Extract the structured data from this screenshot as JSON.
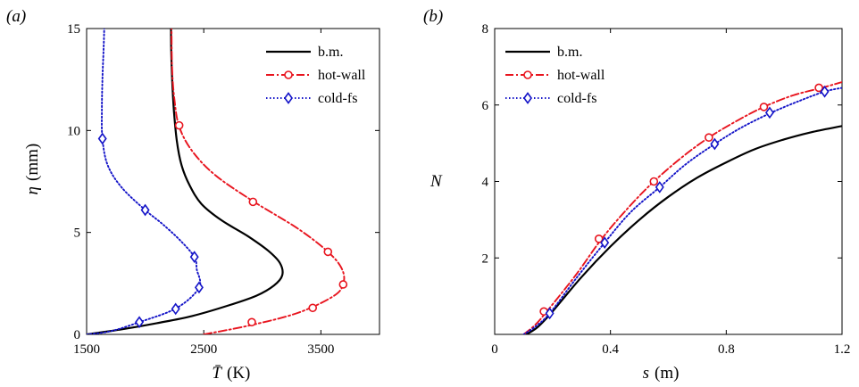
{
  "chart_data": [
    {
      "type": "line",
      "panel_label": "(a)",
      "xlabel_symbol": "T̄",
      "xlabel_unit": "(K)",
      "ylabel_symbol": "η",
      "ylabel_unit": "(mm)",
      "xlim": [
        1500,
        4000
      ],
      "ylim": [
        0,
        15
      ],
      "xticks": [
        "1500",
        "2500",
        "3500"
      ],
      "xtick_values": [
        1500,
        2500,
        3500
      ],
      "yticks": [
        "0",
        "5",
        "10",
        "15"
      ],
      "ytick_values": [
        0,
        5,
        10,
        15
      ],
      "legend_position": "top-right",
      "series": [
        {
          "name": "b.m.",
          "color": "#000000",
          "style": "solid",
          "marker": "none",
          "points": [
            [
              1500,
              0
            ],
            [
              1800,
              0.25
            ],
            [
              2100,
              0.55
            ],
            [
              2400,
              0.9
            ],
            [
              2700,
              1.4
            ],
            [
              2950,
              1.9
            ],
            [
              3100,
              2.4
            ],
            [
              3170,
              2.9
            ],
            [
              3150,
              3.5
            ],
            [
              3050,
              4.1
            ],
            [
              2880,
              4.8
            ],
            [
              2650,
              5.6
            ],
            [
              2480,
              6.4
            ],
            [
              2380,
              7.3
            ],
            [
              2310,
              8.3
            ],
            [
              2270,
              9.5
            ],
            [
              2245,
              11
            ],
            [
              2230,
              12.5
            ],
            [
              2222,
              14
            ],
            [
              2220,
              15
            ]
          ]
        },
        {
          "name": "hot-wall",
          "color": "#e8141e",
          "style": "dashdot",
          "marker": "circle",
          "points": [
            [
              2500,
              0
            ],
            [
              2900,
              0.45
            ],
            [
              3300,
              1.05
            ],
            [
              3600,
              1.85
            ],
            [
              3690,
              2.45
            ],
            [
              3680,
              3.2
            ],
            [
              3560,
              4.05
            ],
            [
              3300,
              5.2
            ],
            [
              2930,
              6.5
            ],
            [
              2600,
              7.8
            ],
            [
              2400,
              9.0
            ],
            [
              2290,
              10.2
            ],
            [
              2250,
              11.5
            ],
            [
              2230,
              13
            ],
            [
              2225,
              15
            ]
          ],
          "marker_points": [
            [
              2910,
              0.6
            ],
            [
              3430,
              1.3
            ],
            [
              3690,
              2.45
            ],
            [
              3560,
              4.05
            ],
            [
              2920,
              6.5
            ],
            [
              2290,
              10.25
            ]
          ]
        },
        {
          "name": "cold-fs",
          "color": "#1414c8",
          "style": "dotted",
          "marker": "diamond",
          "points": [
            [
              1500,
              0
            ],
            [
              1700,
              0.15
            ],
            [
              1950,
              0.6
            ],
            [
              2270,
              1.3
            ],
            [
              2460,
              2.3
            ],
            [
              2440,
              3.2
            ],
            [
              2420,
              3.8
            ],
            [
              2300,
              4.6
            ],
            [
              2150,
              5.4
            ],
            [
              2000,
              6.1
            ],
            [
              1800,
              7.2
            ],
            [
              1680,
              8.3
            ],
            [
              1635,
              9.6
            ],
            [
              1630,
              11
            ],
            [
              1635,
              12.5
            ],
            [
              1645,
              14
            ],
            [
              1650,
              15
            ]
          ],
          "marker_points": [
            [
              1950,
              0.6
            ],
            [
              2260,
              1.25
            ],
            [
              2460,
              2.3
            ],
            [
              2420,
              3.8
            ],
            [
              2000,
              6.1
            ],
            [
              1635,
              9.6
            ]
          ]
        }
      ]
    },
    {
      "type": "line",
      "panel_label": "(b)",
      "xlabel_symbol": "s",
      "xlabel_unit": "(m)",
      "ylabel_symbol": "N",
      "xlim": [
        0,
        1.2
      ],
      "ylim": [
        0,
        8
      ],
      "xticks": [
        "0",
        "0.4",
        "0.8",
        "1.2"
      ],
      "xtick_values": [
        0,
        0.4,
        0.8,
        1.2
      ],
      "yticks": [
        "2",
        "4",
        "6",
        "8"
      ],
      "ytick_values": [
        2,
        4,
        6,
        8
      ],
      "legend_position": "top-left",
      "series": [
        {
          "name": "b.m.",
          "color": "#000000",
          "style": "solid",
          "marker": "none",
          "points": [
            [
              0.11,
              0
            ],
            [
              0.15,
              0.2
            ],
            [
              0.2,
              0.6
            ],
            [
              0.3,
              1.5
            ],
            [
              0.4,
              2.3
            ],
            [
              0.5,
              3.0
            ],
            [
              0.6,
              3.6
            ],
            [
              0.7,
              4.1
            ],
            [
              0.8,
              4.5
            ],
            [
              0.9,
              4.85
            ],
            [
              1.0,
              5.1
            ],
            [
              1.1,
              5.3
            ],
            [
              1.2,
              5.45
            ]
          ]
        },
        {
          "name": "hot-wall",
          "color": "#e8141e",
          "style": "dashdot",
          "marker": "circle",
          "points": [
            [
              0.1,
              0
            ],
            [
              0.14,
              0.25
            ],
            [
              0.18,
              0.6
            ],
            [
              0.28,
              1.55
            ],
            [
              0.37,
              2.5
            ],
            [
              0.46,
              3.3
            ],
            [
              0.55,
              4.0
            ],
            [
              0.65,
              4.65
            ],
            [
              0.74,
              5.15
            ],
            [
              0.84,
              5.6
            ],
            [
              0.93,
              5.95
            ],
            [
              1.03,
              6.25
            ],
            [
              1.13,
              6.45
            ],
            [
              1.2,
              6.6
            ]
          ],
          "marker_points": [
            [
              0.17,
              0.6
            ],
            [
              0.36,
              2.5
            ],
            [
              0.55,
              4.0
            ],
            [
              0.74,
              5.15
            ],
            [
              0.93,
              5.95
            ],
            [
              1.12,
              6.45
            ]
          ]
        },
        {
          "name": "cold-fs",
          "color": "#1414c8",
          "style": "dotted",
          "marker": "diamond",
          "points": [
            [
              0.1,
              0
            ],
            [
              0.14,
              0.2
            ],
            [
              0.19,
              0.55
            ],
            [
              0.28,
              1.45
            ],
            [
              0.38,
              2.4
            ],
            [
              0.47,
              3.2
            ],
            [
              0.57,
              3.85
            ],
            [
              0.66,
              4.45
            ],
            [
              0.76,
              4.98
            ],
            [
              0.85,
              5.4
            ],
            [
              0.95,
              5.78
            ],
            [
              1.05,
              6.1
            ],
            [
              1.14,
              6.35
            ],
            [
              1.2,
              6.45
            ]
          ],
          "marker_points": [
            [
              0.19,
              0.55
            ],
            [
              0.38,
              2.4
            ],
            [
              0.57,
              3.85
            ],
            [
              0.76,
              4.98
            ],
            [
              0.95,
              5.8
            ],
            [
              1.14,
              6.35
            ]
          ]
        }
      ]
    }
  ]
}
